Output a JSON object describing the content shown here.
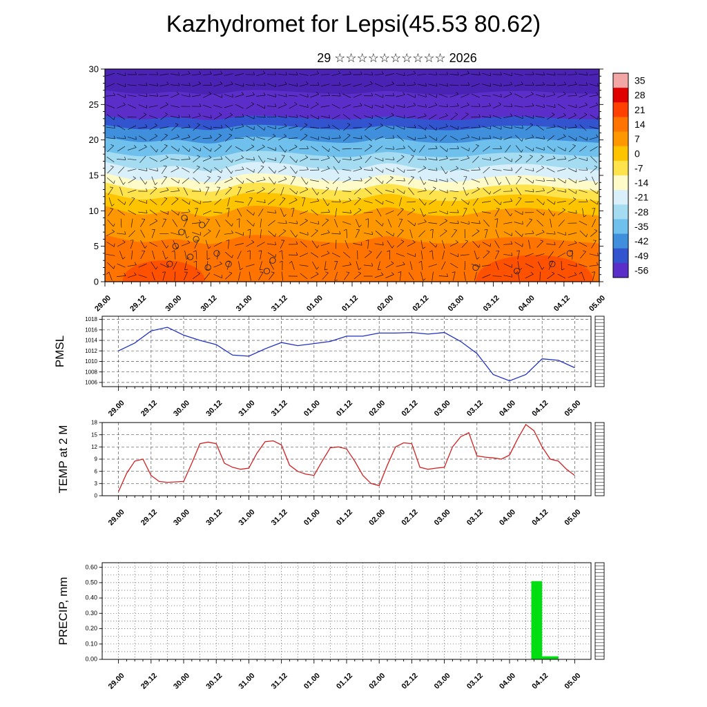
{
  "title": "Kazhydromet for Lepsi(45.53 80.62)",
  "subtitle": "29 ☆☆☆☆☆☆☆☆☆☆ 2026",
  "time_ticks": [
    "29.00",
    "29.12",
    "30.00",
    "30.12",
    "31.00",
    "31.12",
    "01.00",
    "01.12",
    "02.00",
    "02.12",
    "03.00",
    "03.12",
    "04.00",
    "04.12",
    "05.00"
  ],
  "x_tick_hours": [
    0,
    12,
    24,
    36,
    48,
    60,
    72,
    84,
    96,
    108,
    120,
    132,
    144,
    156,
    168
  ],
  "chart_data": [
    {
      "type": "heatmap",
      "name": "cross-section",
      "description": "time-height temperature cross-section with wind barbs",
      "ylim": [
        0,
        30
      ],
      "yticks": [
        0,
        5,
        10,
        15,
        20,
        25,
        30
      ],
      "ytick_labels": [
        "0",
        "5",
        "10",
        "15",
        "20",
        "25",
        "30"
      ],
      "base_color": "#ff7300",
      "hot_color": "#ff5200",
      "hot_patches": [
        {
          "start_hour": 6,
          "end_hour": 34,
          "top_level": 4
        },
        {
          "start_hour": 126,
          "end_hour": 166,
          "top_level": 5
        }
      ],
      "layers": [
        {
          "color": "#ff9800",
          "above": [
            6.6,
            5.6,
            6.0,
            5.3,
            6.5,
            6.4,
            5.7,
            5.5,
            6.4,
            5.6,
            5.4,
            6.1,
            6.3,
            5.8,
            5.4
          ]
        },
        {
          "color": "#ffc400",
          "above": [
            10.7,
            9.5,
            10.0,
            9.2,
            10.6,
            10.5,
            9.6,
            9.4,
            10.5,
            9.5,
            9.3,
            10.1,
            10.4,
            9.8,
            9.3
          ]
        },
        {
          "color": "#ffe34d",
          "above": [
            12.6,
            11.6,
            12.0,
            11.3,
            12.5,
            12.4,
            11.7,
            11.5,
            12.4,
            11.6,
            11.4,
            12.1,
            12.3,
            11.8,
            11.4
          ]
        },
        {
          "color": "#fffbc8",
          "above": [
            14.0,
            13.0,
            13.4,
            12.7,
            13.9,
            13.8,
            13.1,
            12.9,
            13.8,
            13.0,
            12.8,
            13.5,
            13.7,
            13.2,
            12.8
          ]
        },
        {
          "color": "#d9f0fa",
          "above": [
            15.3,
            14.3,
            14.7,
            14.0,
            15.2,
            15.1,
            14.4,
            14.2,
            15.1,
            14.3,
            14.1,
            14.8,
            15.0,
            14.5,
            14.1
          ]
        },
        {
          "color": "#a6dcf2",
          "above": [
            16.9,
            15.9,
            16.3,
            15.6,
            16.8,
            16.7,
            16.0,
            15.8,
            16.7,
            15.9,
            15.7,
            16.4,
            16.6,
            16.1,
            15.7
          ]
        },
        {
          "color": "#6fc0ec",
          "above": [
            18.4,
            17.7,
            18.0,
            17.5,
            18.4,
            18.3,
            17.8,
            17.6,
            18.3,
            17.7,
            17.6,
            18.1,
            18.2,
            17.9,
            17.6
          ]
        },
        {
          "color": "#3f8fdc",
          "above": [
            20.4,
            19.7,
            20.0,
            19.5,
            20.4,
            20.3,
            19.8,
            19.6,
            20.3,
            19.7,
            19.6,
            20.1,
            20.2,
            19.9,
            19.6
          ]
        },
        {
          "color": "#3354cf",
          "above": [
            22.1,
            21.5,
            21.8,
            21.4,
            22.1,
            22.0,
            21.6,
            21.5,
            22.0,
            21.5,
            21.4,
            21.9,
            22.0,
            21.7,
            21.5
          ]
        },
        {
          "color": "#5c2ec9",
          "above": [
            23.4,
            22.9,
            23.2,
            22.8,
            23.4,
            23.3,
            23.0,
            22.9,
            23.3,
            22.9,
            22.8,
            23.2,
            23.3,
            23.0,
            22.9
          ]
        },
        {
          "color": "#4a23b4",
          "above": [
            27.0,
            26.5,
            26.8,
            26.4,
            27.0,
            26.9,
            26.6,
            26.5,
            26.9,
            26.5,
            26.4,
            26.8,
            26.9,
            26.6,
            26.5
          ]
        }
      ],
      "circles": [
        [
          22,
          2.5
        ],
        [
          24,
          5
        ],
        [
          26,
          7
        ],
        [
          27,
          9
        ],
        [
          29,
          3.5
        ],
        [
          31,
          6
        ],
        [
          33,
          8
        ],
        [
          35,
          2
        ],
        [
          38,
          4
        ],
        [
          42,
          2.5
        ],
        [
          55,
          1.5
        ],
        [
          57,
          3
        ],
        [
          126,
          2
        ],
        [
          140,
          1.5
        ],
        [
          152,
          2.5
        ],
        [
          158,
          4
        ]
      ],
      "wind_barbs": {
        "seed": 7,
        "cols": 46,
        "rows": 20
      },
      "colorbar": {
        "labels": [
          "35",
          "28",
          "21",
          "14",
          "7",
          "0",
          "-7",
          "-14",
          "-21",
          "-28",
          "-35",
          "-42",
          "-49",
          "-56"
        ],
        "colors": [
          "#f2a6a6",
          "#e00000",
          "#ff4000",
          "#ff7300",
          "#ff9800",
          "#ffc400",
          "#ffe34d",
          "#fffbc8",
          "#d9f0fa",
          "#a6dcf2",
          "#6fc0ec",
          "#3f8fdc",
          "#3354cf",
          "#5c2ec9"
        ]
      }
    },
    {
      "type": "line",
      "name": "pmsl",
      "title": "PMSL",
      "color": "#1f2fbf",
      "ylim": [
        1005.2,
        1018.6
      ],
      "yticks": [
        1006,
        1008,
        1010,
        1012,
        1014,
        1016,
        1018
      ],
      "ytick_labels": [
        "1006",
        "1008",
        "1010",
        "1012",
        "1014",
        "1016",
        "1018"
      ],
      "step_hours": 6,
      "values": [
        1012,
        1013.5,
        1015.8,
        1016.5,
        1015,
        1014,
        1013.2,
        1011.2,
        1011,
        1012.4,
        1013.6,
        1013,
        1013.4,
        1013.8,
        1014.8,
        1014.8,
        1015.4,
        1015.4,
        1015.5,
        1015.2,
        1015.5,
        1013.8,
        1011.5,
        1007.5,
        1006.3,
        1007.5,
        1010.5,
        1010.2,
        1008.8
      ]
    },
    {
      "type": "line",
      "name": "temp2m",
      "title": "TEMP at 2 M",
      "color": "#d02020",
      "ylim": [
        0,
        18
      ],
      "yticks": [
        0,
        3,
        6,
        9,
        12,
        15,
        18
      ],
      "ytick_labels": [
        "0",
        "3",
        "6",
        "9",
        "12",
        "15",
        "18"
      ],
      "step_hours": 3,
      "values": [
        1.0,
        5.5,
        8.5,
        9.0,
        5.0,
        3.5,
        3.3,
        3.4,
        3.5,
        8.0,
        12.8,
        13.2,
        12.8,
        8.0,
        7.0,
        6.5,
        6.8,
        10.5,
        13.3,
        13.5,
        12.5,
        7.5,
        6.0,
        5.3,
        5.0,
        8.5,
        11.8,
        12.0,
        11.5,
        8.5,
        5.0,
        3.0,
        2.5,
        7.5,
        12.0,
        13.0,
        12.8,
        7.0,
        6.5,
        6.8,
        7.0,
        12.0,
        14.5,
        15.5,
        9.8,
        9.5,
        9.3,
        9.0,
        10.0,
        14.0,
        17.5,
        16.0,
        12.0,
        9.0,
        8.5,
        6.5,
        5.0
      ]
    },
    {
      "type": "bar",
      "name": "precip",
      "title": "PRECIP, mm",
      "color": "#00dd10",
      "ylim": [
        0,
        0.63
      ],
      "yticks": [
        0,
        0.1,
        0.2,
        0.3,
        0.4,
        0.5,
        0.6
      ],
      "ytick_labels": [
        "0.00",
        "0.10",
        "0.20",
        "0.30",
        "0.40",
        "0.50",
        "0.60"
      ],
      "grid_step_y": 0.05,
      "bars": [
        {
          "start_hour": 152,
          "end_hour": 156,
          "value": 0.51
        },
        {
          "start_hour": 156,
          "end_hour": 162,
          "value": 0.02
        }
      ]
    }
  ]
}
